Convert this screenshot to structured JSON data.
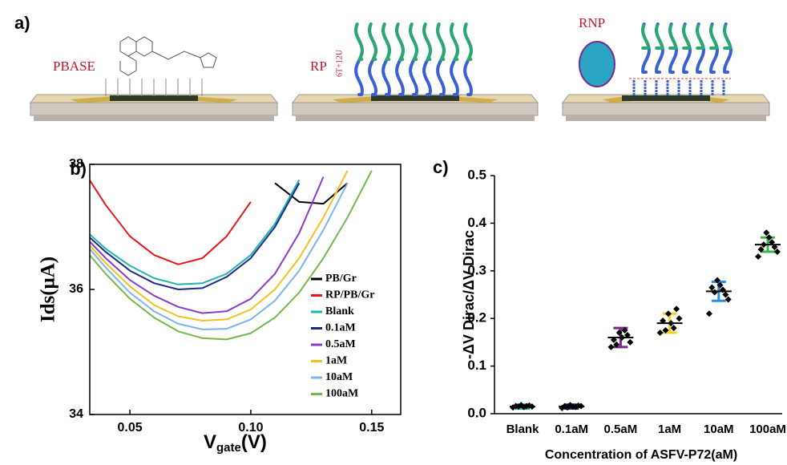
{
  "panel_a": {
    "label": "a)",
    "pbase": "PBASE",
    "rp": "RP",
    "rp_sub": "6T+12U",
    "rnp": "RNP"
  },
  "chart_data": [
    {
      "type": "line",
      "label": "b)",
      "ylabel": "Ids(μA)",
      "xlabel": "V",
      "xlabel_sub": "gate",
      "xlabel_unit": "(V)",
      "xlim": [
        0.0334,
        0.162
      ],
      "ylim": [
        34,
        38
      ],
      "xticks": [
        0.05,
        {
          "value": 0.1,
          "label": "0.10"
        },
        0.15
      ],
      "yticks": [
        34,
        36,
        38
      ],
      "legend": "lower right",
      "x": [
        0.03,
        0.04,
        0.05,
        0.06,
        0.07,
        0.08,
        0.09,
        0.1,
        0.11,
        0.12,
        0.13,
        0.14,
        0.15,
        0.16
      ],
      "series": [
        {
          "name": "PB/Gr",
          "color": "#000000",
          "values": [
            null,
            null,
            null,
            null,
            null,
            null,
            null,
            null,
            37.7,
            37.4,
            37.37,
            37.7,
            null,
            null
          ]
        },
        {
          "name": "RP/PB/Gr",
          "color": "#e8171b",
          "values": [
            37.95,
            37.35,
            36.85,
            36.55,
            36.4,
            36.5,
            36.85,
            37.4,
            null,
            null,
            null,
            null,
            null,
            null
          ]
        },
        {
          "name": "Blank",
          "color": "#1fb5a8",
          "values": [
            37.0,
            36.65,
            36.38,
            36.18,
            36.08,
            36.1,
            36.25,
            36.55,
            37.05,
            37.75,
            null,
            null,
            null,
            null
          ]
        },
        {
          "name": "0.1aM",
          "color": "#1b2a8c",
          "values": [
            36.95,
            36.6,
            36.3,
            36.1,
            36.0,
            36.02,
            36.2,
            36.5,
            37.0,
            37.7,
            null,
            null,
            null,
            null
          ]
        },
        {
          "name": "0.5aM",
          "color": "#8a3cc4",
          "values": [
            36.9,
            36.5,
            36.15,
            35.9,
            35.72,
            35.62,
            35.65,
            35.85,
            36.25,
            36.9,
            37.8,
            null,
            null,
            null
          ]
        },
        {
          "name": "1aM",
          "color": "#f4c020",
          "values": [
            36.85,
            36.42,
            36.05,
            35.75,
            35.57,
            35.5,
            35.52,
            35.68,
            36.0,
            36.5,
            37.15,
            37.9,
            null,
            null
          ]
        },
        {
          "name": "10aM",
          "color": "#7fb4ea",
          "values": [
            36.8,
            36.35,
            35.95,
            35.65,
            35.45,
            35.36,
            35.37,
            35.52,
            35.82,
            36.3,
            36.95,
            37.7,
            null,
            null
          ]
        },
        {
          "name": "100aM",
          "color": "#74b84a",
          "values": [
            36.7,
            36.25,
            35.85,
            35.55,
            35.33,
            35.22,
            35.2,
            35.3,
            35.55,
            35.95,
            36.5,
            37.15,
            37.9,
            null
          ]
        }
      ]
    },
    {
      "type": "scatter",
      "label": "c)",
      "ylabel": "-ΔV Dirac/ΔV Dirac",
      "xlabel": "Concentration of ASFV-P72(aM)",
      "ylim": [
        0,
        0.5
      ],
      "yticks": [
        {
          "value": 0,
          "label": "0.0"
        },
        0.1,
        0.2,
        0.3,
        0.4,
        0.5
      ],
      "categories": [
        "Blank",
        "0.1aM",
        "0.5aM",
        "1aM",
        "10aM",
        "100aM"
      ],
      "colors": [
        "#1fb5a8",
        "#1b2a8c",
        "#7b2a8c",
        "#f4d020",
        "#2a8ee8",
        "#3cb44a"
      ],
      "means": [
        0.015,
        0.015,
        0.16,
        0.19,
        0.257,
        0.355
      ],
      "errors": [
        0.004,
        0.004,
        0.02,
        0.02,
        0.02,
        0.015
      ],
      "points": [
        [
          0.013,
          0.015,
          0.017,
          0.016,
          0.014,
          0.018,
          0.015,
          0.016
        ],
        [
          0.012,
          0.016,
          0.017,
          0.014,
          0.015,
          0.018,
          0.013,
          0.016
        ],
        [
          0.14,
          0.15,
          0.165,
          0.175,
          0.16,
          0.17,
          0.145,
          0.155
        ],
        [
          0.17,
          0.2,
          0.22,
          0.18,
          0.19,
          0.21,
          0.175,
          0.195
        ],
        [
          0.21,
          0.24,
          0.25,
          0.26,
          0.27,
          0.28,
          0.255,
          0.265
        ],
        [
          0.33,
          0.34,
          0.35,
          0.36,
          0.37,
          0.38,
          0.355,
          0.345
        ]
      ]
    }
  ]
}
